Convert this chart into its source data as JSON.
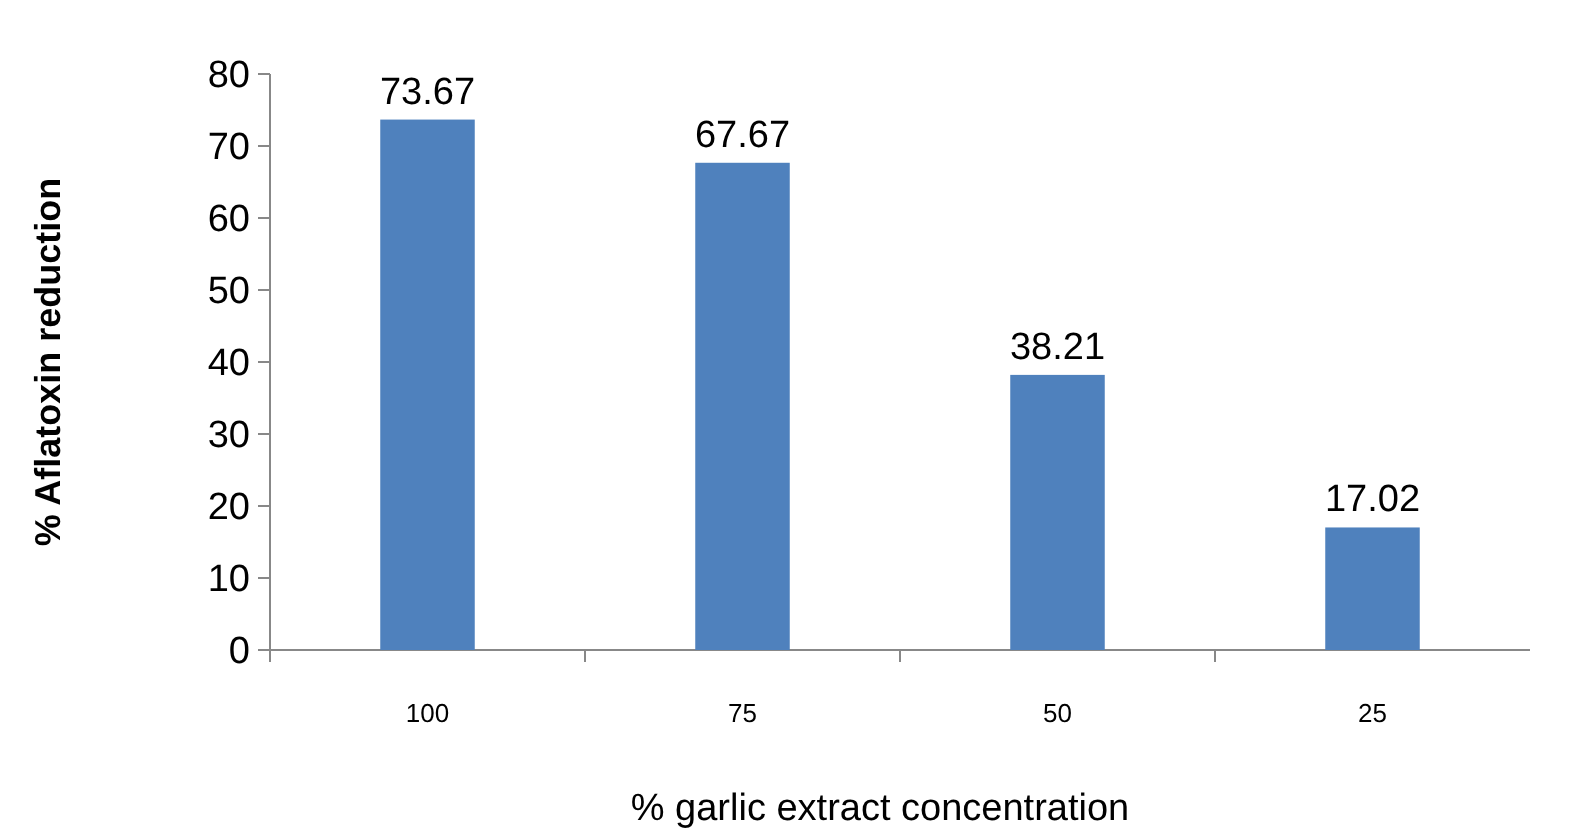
{
  "chart_data": {
    "type": "bar",
    "xlabel": "%  garlic extract concentration",
    "ylabel": "% Aflatoxin reduction",
    "categories": [
      "100",
      "75",
      "50",
      "25"
    ],
    "values": [
      73.67,
      67.67,
      38.21,
      17.02
    ],
    "color": "#4f81bd",
    "ylim": [
      0,
      80
    ],
    "yticks": [
      0,
      10,
      20,
      30,
      40,
      50,
      60,
      70,
      80
    ],
    "data_labels": true
  }
}
